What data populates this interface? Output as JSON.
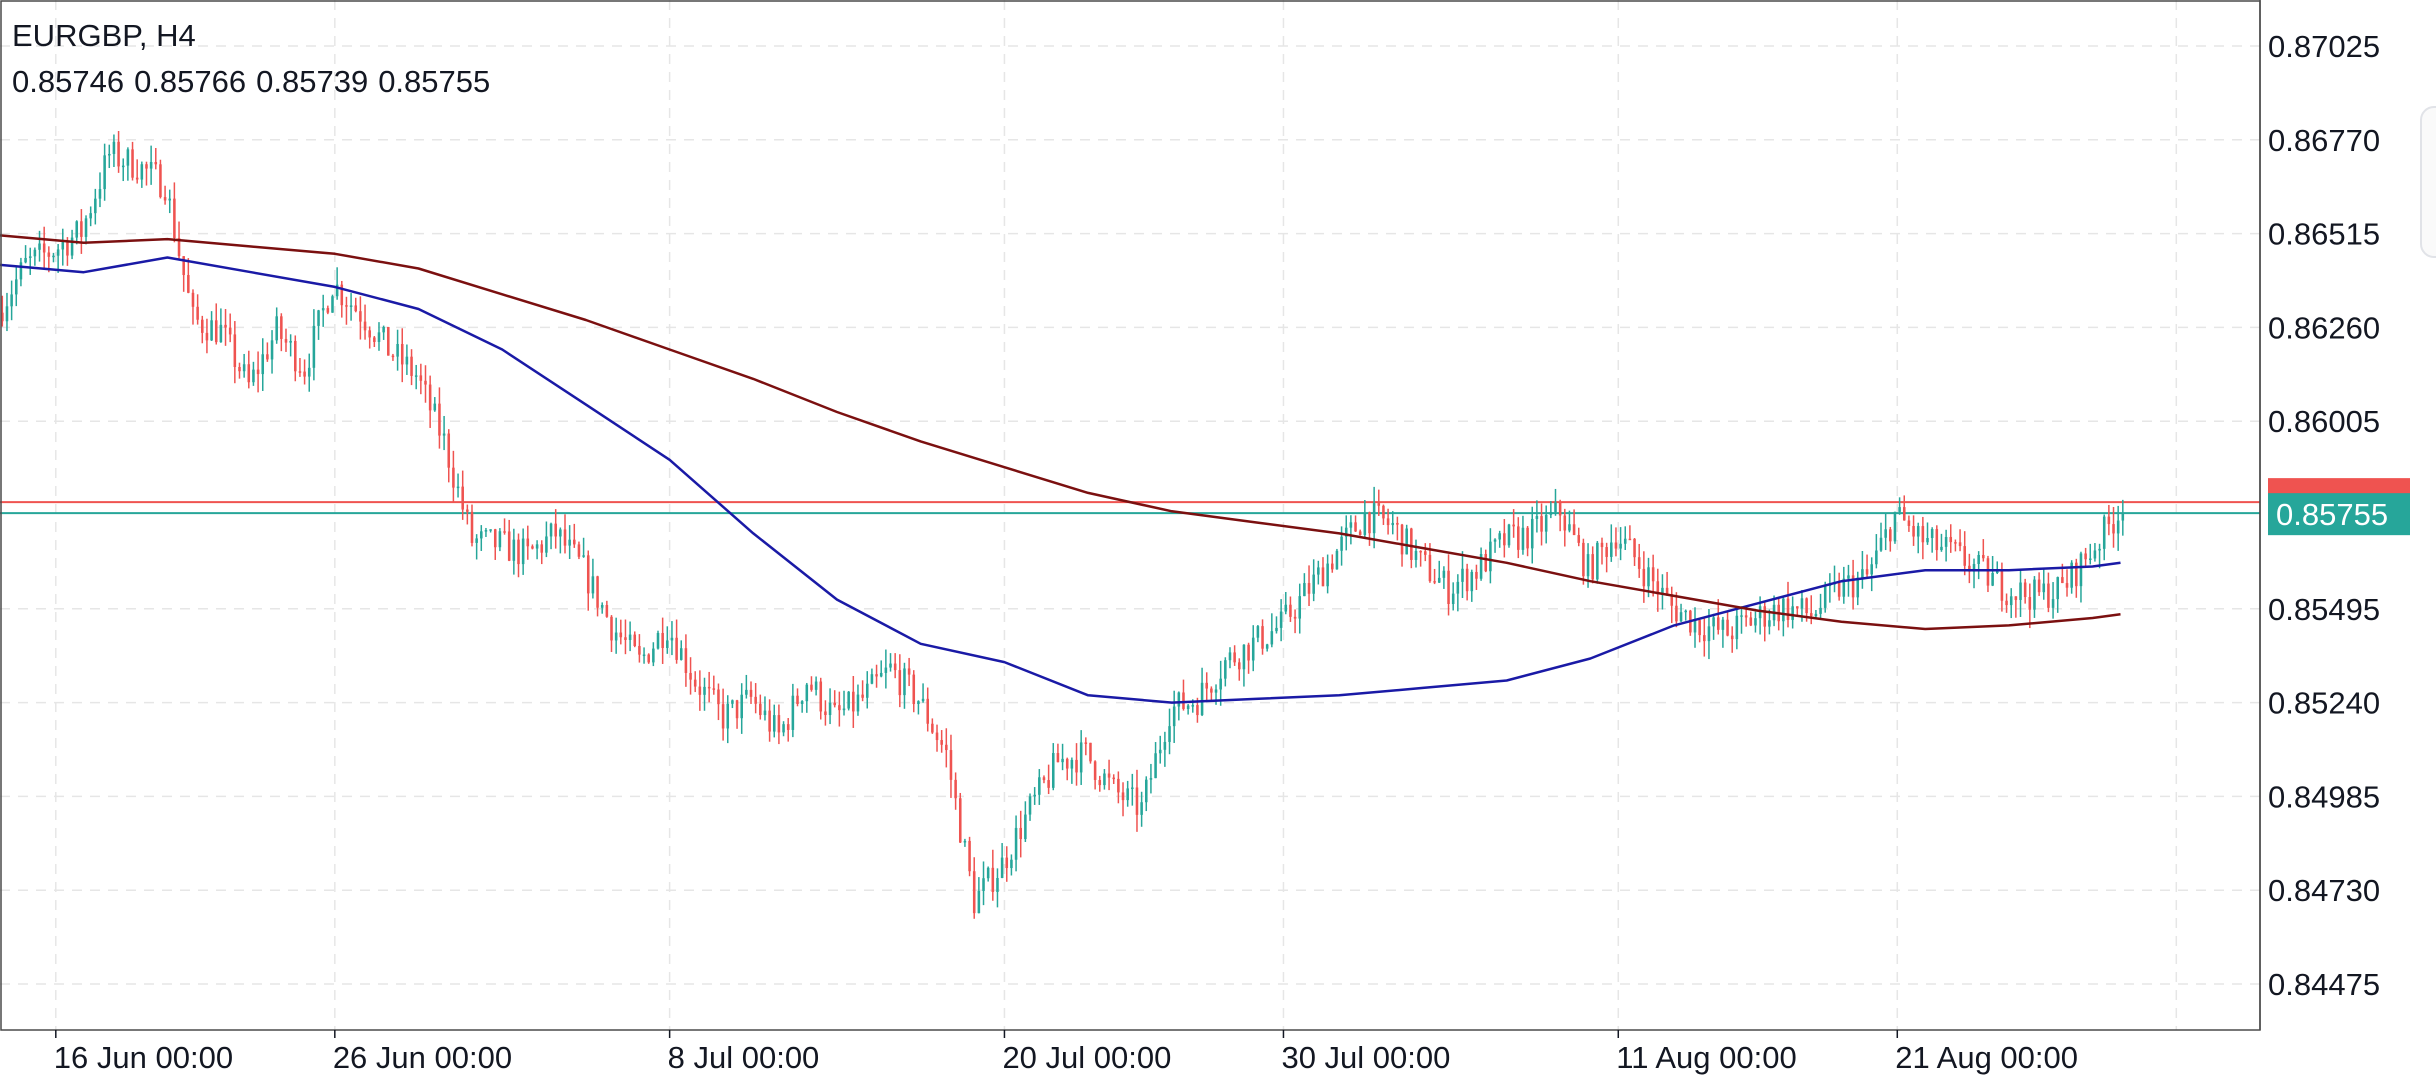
{
  "header": {
    "symbol_timeframe": "EURGBP, H4",
    "ohlc": [
      "0.85746",
      "0.85766",
      "0.85739",
      "0.85755"
    ]
  },
  "price_label": {
    "text": "0.85755",
    "color": "#26a69a"
  },
  "colors": {
    "up": "#26a69a",
    "down": "#ef5350",
    "ma_fast": "#1a1aa6",
    "ma_slow": "#7b1010",
    "grid": "#e6e6e6",
    "axis": "#131722"
  },
  "chart_data": {
    "type": "line",
    "symbol": "EURGBP",
    "timeframe": "H4",
    "ylim": [
      0.8435,
      0.8715
    ],
    "x_range": [
      "2020-06-14",
      "2020-09-03"
    ],
    "y_ticks": [
      "0.87025",
      "0.86770",
      "0.86515",
      "0.86260",
      "0.86005",
      "0.85495",
      "0.85240",
      "0.84985",
      "0.84730",
      "0.84475"
    ],
    "x_ticks": [
      {
        "label": "16 Jun 00:00",
        "date": "2020-06-16"
      },
      {
        "label": "26 Jun 00:00",
        "date": "2020-06-26"
      },
      {
        "label": "8 Jul 00:00",
        "date": "2020-07-08"
      },
      {
        "label": "20 Jul 00:00",
        "date": "2020-07-20"
      },
      {
        "label": "30 Jul 00:00",
        "date": "2020-07-30"
      },
      {
        "label": "11 Aug 00:00",
        "date": "2020-08-11"
      },
      {
        "label": "21 Aug 00:00",
        "date": "2020-08-21"
      }
    ],
    "grid": true,
    "last_price": 0.85755,
    "horizontal_lines": [
      {
        "value": 0.85785,
        "color": "#ef5350"
      },
      {
        "value": 0.85755,
        "color": "#26a69a"
      }
    ],
    "price_path": [
      [
        "2020-06-14",
        0.863
      ],
      [
        "2020-06-15",
        0.8643
      ],
      [
        "2020-06-16",
        0.8647
      ],
      [
        "2020-06-17",
        0.8652
      ],
      [
        "2020-06-18",
        0.8673
      ],
      [
        "2020-06-19",
        0.867
      ],
      [
        "2020-06-20",
        0.8665
      ],
      [
        "2020-06-21",
        0.8628
      ],
      [
        "2020-06-22",
        0.8625
      ],
      [
        "2020-06-23",
        0.861
      ],
      [
        "2020-06-24",
        0.8625
      ],
      [
        "2020-06-25",
        0.8615
      ],
      [
        "2020-06-26",
        0.8638
      ],
      [
        "2020-06-27",
        0.863
      ],
      [
        "2020-06-28",
        0.862
      ],
      [
        "2020-06-29",
        0.8613
      ],
      [
        "2020-06-30",
        0.8595
      ],
      [
        "2020-07-01",
        0.8568
      ],
      [
        "2020-07-02",
        0.8567
      ],
      [
        "2020-07-03",
        0.8564
      ],
      [
        "2020-07-04",
        0.857
      ],
      [
        "2020-07-05",
        0.856
      ],
      [
        "2020-07-06",
        0.8545
      ],
      [
        "2020-07-07",
        0.8535
      ],
      [
        "2020-07-08",
        0.8545
      ],
      [
        "2020-07-09",
        0.853
      ],
      [
        "2020-07-10",
        0.852
      ],
      [
        "2020-07-11",
        0.8525
      ],
      [
        "2020-07-12",
        0.8515
      ],
      [
        "2020-07-13",
        0.853
      ],
      [
        "2020-07-14",
        0.852
      ],
      [
        "2020-07-15",
        0.8525
      ],
      [
        "2020-07-16",
        0.8533
      ],
      [
        "2020-07-17",
        0.8525
      ],
      [
        "2020-07-18",
        0.851
      ],
      [
        "2020-07-19",
        0.847
      ],
      [
        "2020-07-20",
        0.848
      ],
      [
        "2020-07-21",
        0.8495
      ],
      [
        "2020-07-22",
        0.8508
      ],
      [
        "2020-07-23",
        0.851
      ],
      [
        "2020-07-24",
        0.85
      ],
      [
        "2020-07-25",
        0.8495
      ],
      [
        "2020-07-26",
        0.8522
      ],
      [
        "2020-07-27",
        0.8525
      ],
      [
        "2020-07-28",
        0.8535
      ],
      [
        "2020-07-29",
        0.854
      ],
      [
        "2020-07-30",
        0.8545
      ],
      [
        "2020-07-31",
        0.8555
      ],
      [
        "2020-08-01",
        0.8565
      ],
      [
        "2020-08-02",
        0.8575
      ],
      [
        "2020-08-03",
        0.8572
      ],
      [
        "2020-08-04",
        0.8562
      ],
      [
        "2020-08-05",
        0.8555
      ],
      [
        "2020-08-06",
        0.856
      ],
      [
        "2020-08-07",
        0.8568
      ],
      [
        "2020-08-08",
        0.857
      ],
      [
        "2020-08-09",
        0.8576
      ],
      [
        "2020-08-10",
        0.856
      ],
      [
        "2020-08-11",
        0.857
      ],
      [
        "2020-08-12",
        0.856
      ],
      [
        "2020-08-13",
        0.855
      ],
      [
        "2020-08-14",
        0.8545
      ],
      [
        "2020-08-15",
        0.8543
      ],
      [
        "2020-08-16",
        0.8547
      ],
      [
        "2020-08-17",
        0.855
      ],
      [
        "2020-08-18",
        0.8548
      ],
      [
        "2020-08-19",
        0.8555
      ],
      [
        "2020-08-20",
        0.8558
      ],
      [
        "2020-08-21",
        0.8575
      ],
      [
        "2020-08-22",
        0.8568
      ],
      [
        "2020-08-23",
        0.8565
      ],
      [
        "2020-08-24",
        0.856
      ],
      [
        "2020-08-25",
        0.8555
      ],
      [
        "2020-08-26",
        0.8553
      ],
      [
        "2020-08-27",
        0.8555
      ],
      [
        "2020-08-28",
        0.8565
      ],
      [
        "2020-08-29",
        0.85755
      ]
    ],
    "series": [
      {
        "values": [
          [
            "2020-06-14",
            0.8643
          ],
          [
            "2020-06-17",
            0.8641
          ],
          [
            "2020-06-20",
            0.8645
          ],
          [
            "2020-06-23",
            0.8641
          ],
          [
            "2020-06-26",
            0.8637
          ],
          [
            "2020-06-29",
            0.8631
          ],
          [
            "2020-07-02",
            0.862
          ],
          [
            "2020-07-05",
            0.8605
          ],
          [
            "2020-07-08",
            0.859
          ],
          [
            "2020-07-11",
            0.857
          ],
          [
            "2020-07-14",
            0.8552
          ],
          [
            "2020-07-17",
            0.854
          ],
          [
            "2020-07-20",
            0.8535
          ],
          [
            "2020-07-23",
            0.8526
          ],
          [
            "2020-07-26",
            0.8524
          ],
          [
            "2020-07-29",
            0.8525
          ],
          [
            "2020-08-01",
            0.8526
          ],
          [
            "2020-08-04",
            0.8528
          ],
          [
            "2020-08-07",
            0.853
          ],
          [
            "2020-08-10",
            0.8536
          ],
          [
            "2020-08-13",
            0.8545
          ],
          [
            "2020-08-16",
            0.8551
          ],
          [
            "2020-08-19",
            0.8557
          ],
          [
            "2020-08-22",
            0.856
          ],
          [
            "2020-08-25",
            0.856
          ],
          [
            "2020-08-28",
            0.8561
          ],
          [
            "2020-08-29",
            0.8562
          ]
        ]
      },
      {
        "values": [
          [
            "2020-06-14",
            0.8651
          ],
          [
            "2020-06-17",
            0.8649
          ],
          [
            "2020-06-20",
            0.865
          ],
          [
            "2020-06-23",
            0.8648
          ],
          [
            "2020-06-26",
            0.8646
          ],
          [
            "2020-06-29",
            0.8642
          ],
          [
            "2020-07-02",
            0.8635
          ],
          [
            "2020-07-05",
            0.8628
          ],
          [
            "2020-07-08",
            0.862
          ],
          [
            "2020-07-11",
            0.8612
          ],
          [
            "2020-07-14",
            0.8603
          ],
          [
            "2020-07-17",
            0.8595
          ],
          [
            "2020-07-20",
            0.8588
          ],
          [
            "2020-07-23",
            0.8581
          ],
          [
            "2020-07-26",
            0.8576
          ],
          [
            "2020-07-29",
            0.8573
          ],
          [
            "2020-08-01",
            0.857
          ],
          [
            "2020-08-04",
            0.8566
          ],
          [
            "2020-08-07",
            0.8562
          ],
          [
            "2020-08-10",
            0.8557
          ],
          [
            "2020-08-13",
            0.8553
          ],
          [
            "2020-08-16",
            0.8549
          ],
          [
            "2020-08-19",
            0.8546
          ],
          [
            "2020-08-22",
            0.8544
          ],
          [
            "2020-08-25",
            0.8545
          ],
          [
            "2020-08-28",
            0.8547
          ],
          [
            "2020-08-29",
            0.8548
          ]
        ]
      }
    ]
  }
}
